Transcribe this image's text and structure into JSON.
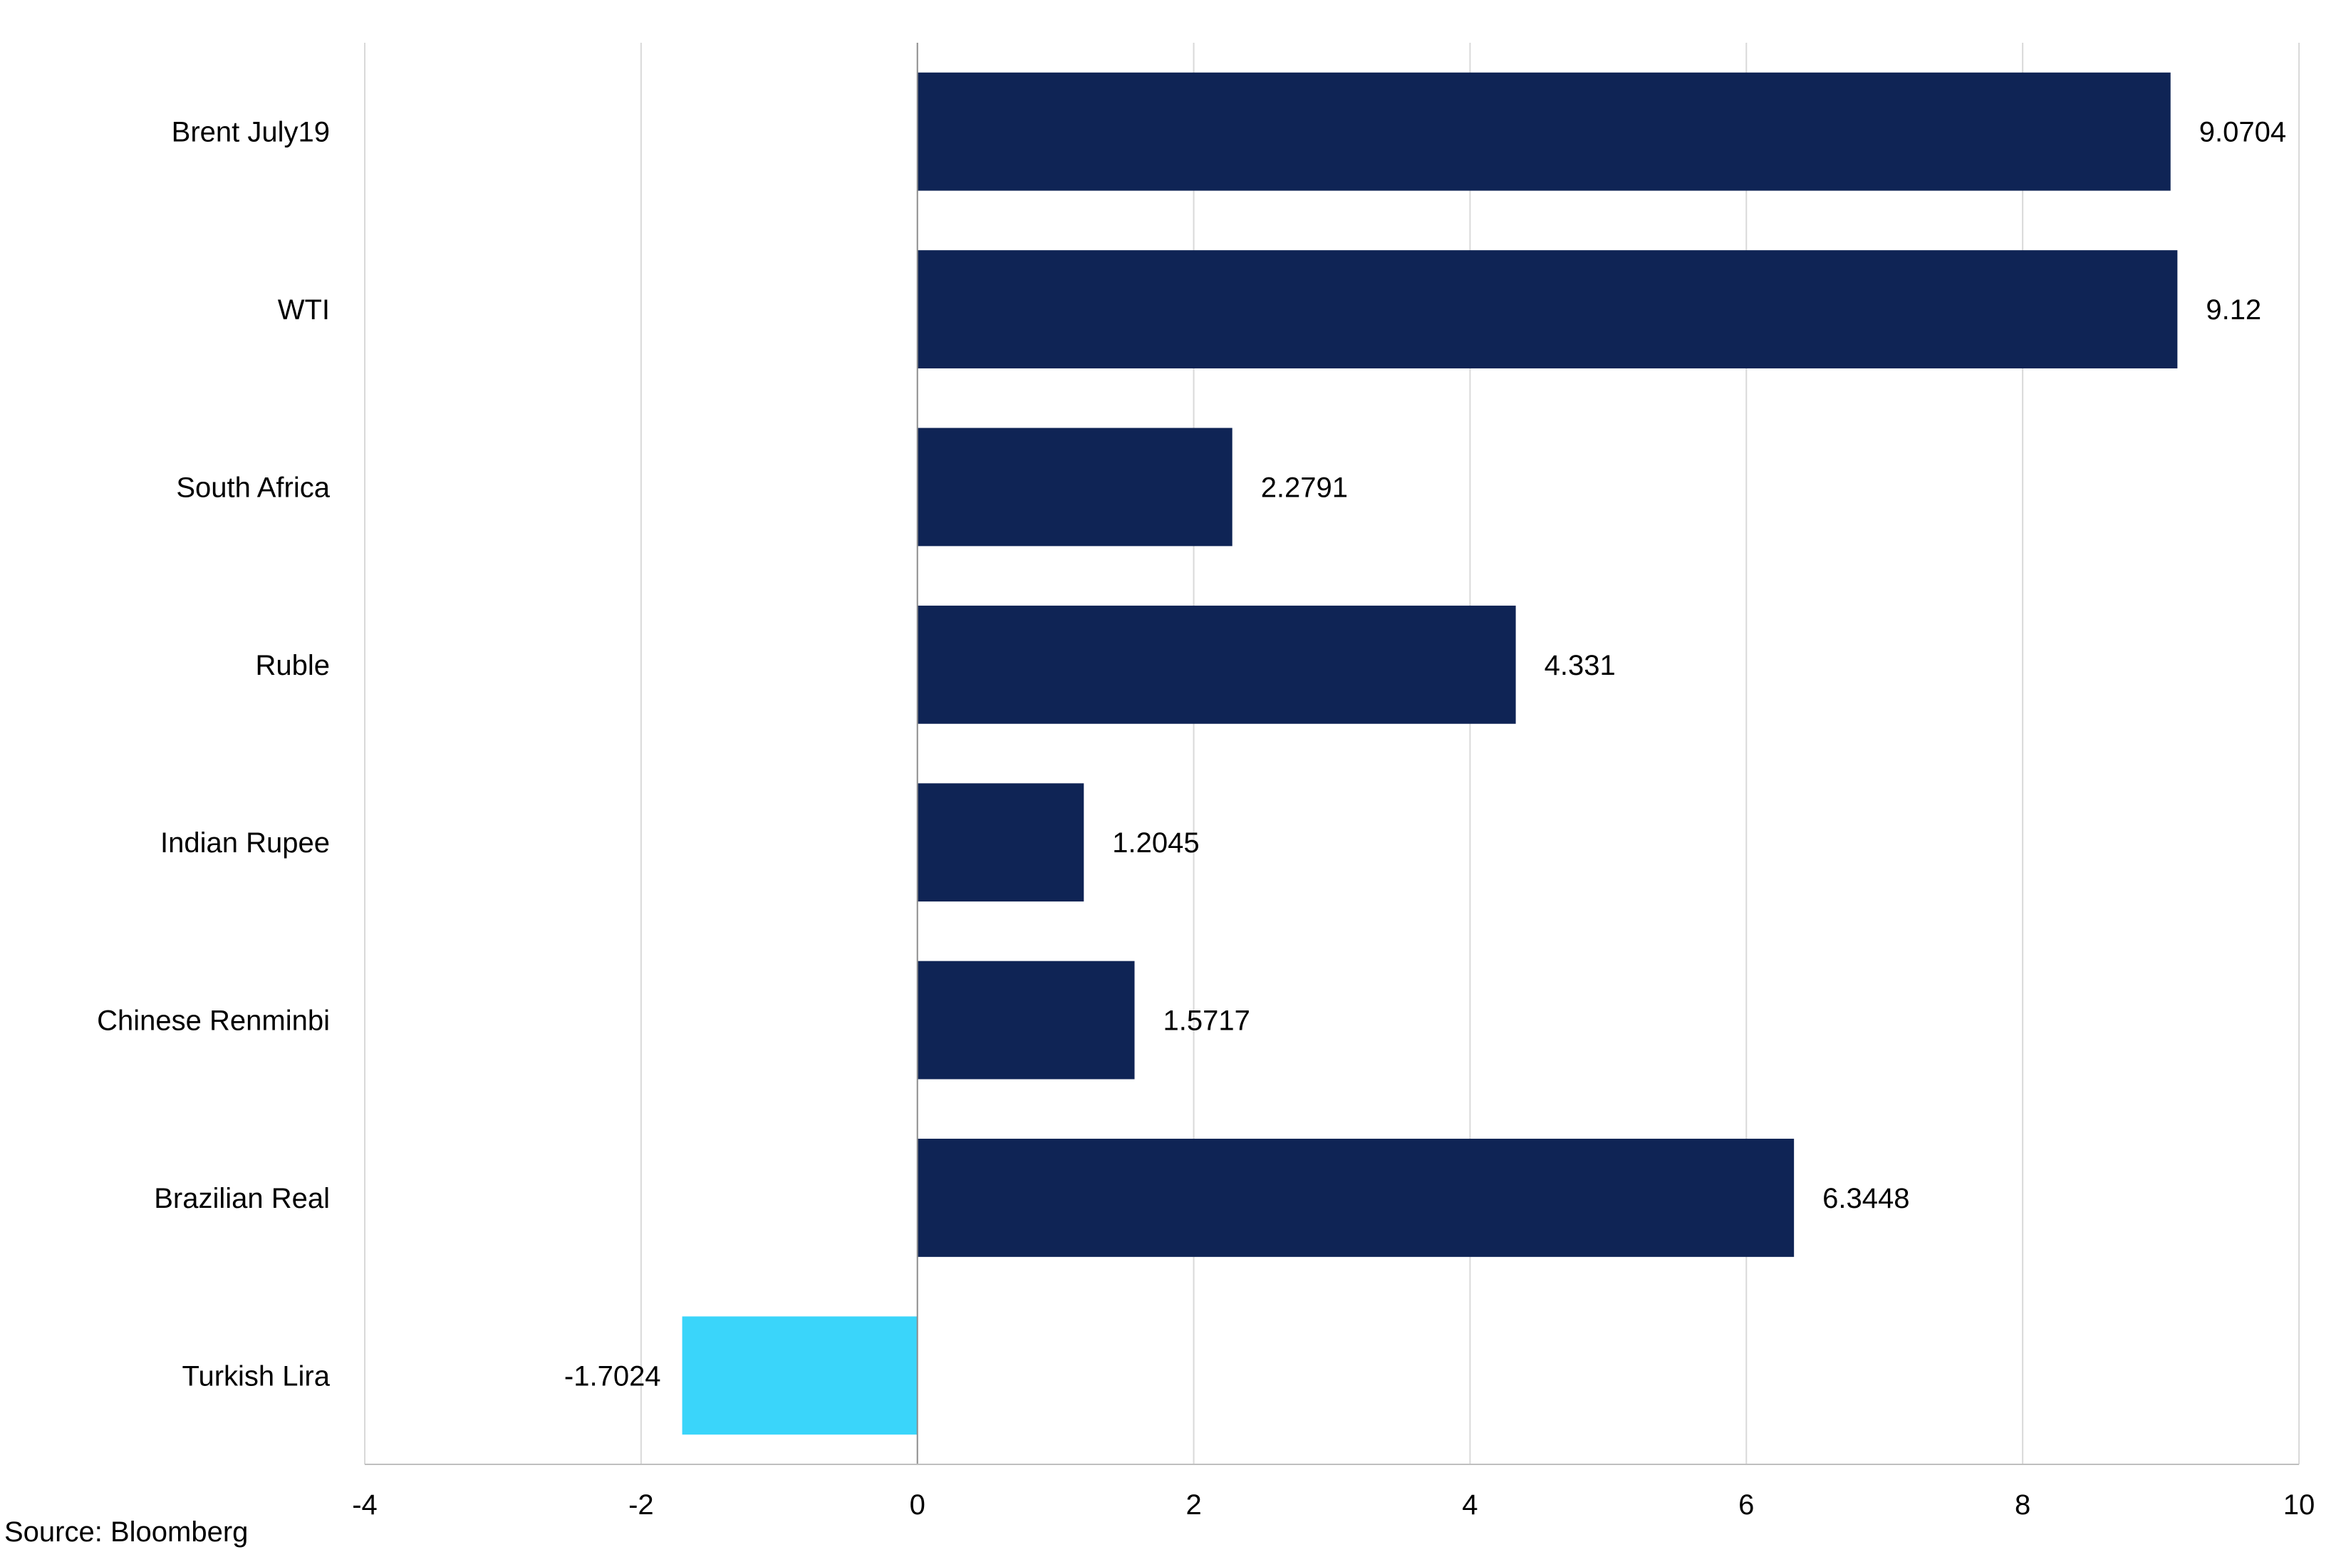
{
  "colors": {
    "positive_bar": "#0f2455",
    "negative_bar": "#3ad5fa"
  },
  "source": "Source: Bloomberg",
  "chart_data": {
    "type": "bar",
    "orientation": "horizontal",
    "categories": [
      "Brent July19",
      "WTI",
      "South Africa",
      "Ruble",
      "Indian Rupee",
      "Chinese Renminbi",
      "Brazilian Real",
      "Turkish Lira"
    ],
    "values": [
      9.0704,
      9.12,
      2.2791,
      4.331,
      1.2045,
      1.5717,
      6.3448,
      -1.7024
    ],
    "data_labels": [
      "9.0704",
      "9.12",
      "2.2791",
      "4.331",
      "1.2045",
      "1.5717",
      "6.3448",
      "-1.7024"
    ],
    "title": "",
    "xlabel": "",
    "ylabel": "",
    "xlim": [
      -4,
      10
    ],
    "xticks": [
      "-4",
      "-2",
      "0",
      "2",
      "4",
      "6",
      "8",
      "10"
    ],
    "grid": "vertical",
    "legend": "none"
  }
}
